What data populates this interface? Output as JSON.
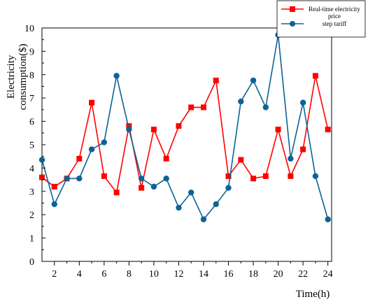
{
  "chart_data": {
    "type": "line",
    "title": "",
    "xlabel": "Time(h)",
    "ylabel": "Electricity consumption($)",
    "ylabel_lines": [
      "Electricity",
      "consumption($)"
    ],
    "xlim": [
      1,
      24.3
    ],
    "ylim": [
      0,
      10
    ],
    "xticks": [
      2,
      4,
      6,
      8,
      10,
      12,
      14,
      16,
      18,
      20,
      22,
      24
    ],
    "yticks": [
      0,
      1,
      2,
      3,
      4,
      5,
      6,
      7,
      8,
      9,
      10
    ],
    "grid": false,
    "legend_position": "top-right",
    "x": [
      1,
      2,
      3,
      4,
      5,
      6,
      7,
      8,
      9,
      10,
      11,
      12,
      13,
      14,
      15,
      16,
      17,
      18,
      19,
      20,
      21,
      22,
      23,
      24
    ],
    "series": [
      {
        "name": "Real-time electricity price",
        "legend_lines": [
          "Real-time electricity",
          "price"
        ],
        "color": "#ff0000",
        "marker": "square",
        "values": [
          3.6,
          3.2,
          3.55,
          4.4,
          6.8,
          3.65,
          2.95,
          5.8,
          3.15,
          5.65,
          4.4,
          5.8,
          6.6,
          6.6,
          7.75,
          3.65,
          4.35,
          3.55,
          3.65,
          5.65,
          3.65,
          4.8,
          7.95,
          5.65
        ]
      },
      {
        "name": "step tariff",
        "legend_lines": [
          "step tariff"
        ],
        "color": "#0d6394",
        "marker": "circle",
        "values": [
          4.35,
          2.45,
          3.55,
          3.55,
          4.8,
          5.1,
          7.95,
          5.65,
          3.55,
          3.2,
          3.55,
          2.3,
          2.95,
          1.8,
          2.45,
          3.15,
          6.85,
          7.75,
          6.6,
          9.7,
          4.4,
          6.8,
          3.65,
          1.8
        ]
      }
    ]
  }
}
